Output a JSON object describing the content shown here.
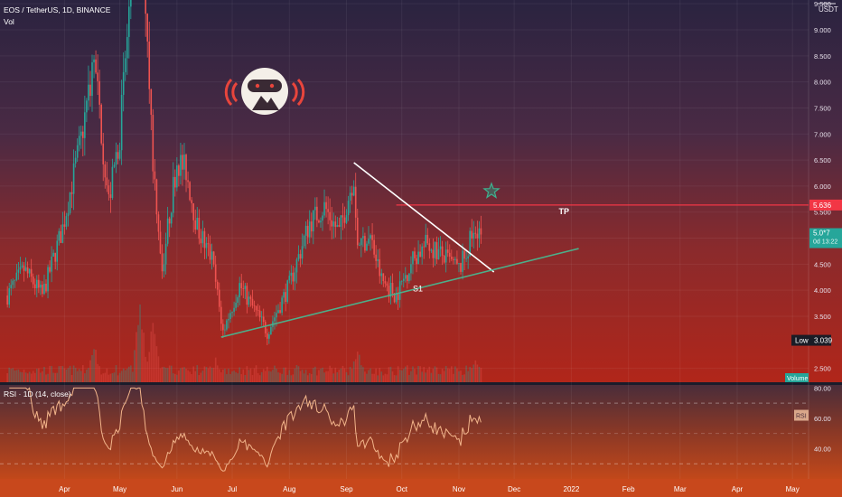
{
  "header": {
    "symbol_line": "EOS / TetherUS, 1D, BINANCE",
    "vol_label": "Vol"
  },
  "price_axis": {
    "unit": "USDT",
    "ticks": [
      {
        "label": "9.500",
        "value": 9.5
      },
      {
        "label": "9.000",
        "value": 9.0
      },
      {
        "label": "8.500",
        "value": 8.5
      },
      {
        "label": "8.000",
        "value": 8.0
      },
      {
        "label": "7.500",
        "value": 7.5
      },
      {
        "label": "7.000",
        "value": 7.0
      },
      {
        "label": "6.500",
        "value": 6.5
      },
      {
        "label": "6.000",
        "value": 6.0
      },
      {
        "label": "5.500",
        "value": 5.5
      },
      {
        "label": "5.000",
        "value": 5.0
      },
      {
        "label": "4.500",
        "value": 4.5
      },
      {
        "label": "4.000",
        "value": 4.0
      },
      {
        "label": "3.500",
        "value": 3.5
      },
      {
        "label": "2.500",
        "value": 2.5
      }
    ],
    "tp_tag": "5.636",
    "last_tag_top": "5.0*7",
    "last_tag_bottom": "0d 13:22",
    "low_label": "Low",
    "low_value": "3.039",
    "volume_tag": "Volume"
  },
  "rsi": {
    "label": "RSI · 1D (14, close)",
    "ticks": [
      {
        "label": "80.00",
        "value": 80
      },
      {
        "label": "60.00",
        "value": 60
      },
      {
        "label": "40.00",
        "value": 40
      }
    ],
    "tag": "RSI"
  },
  "time_axis": {
    "labels": [
      "Apr",
      "May",
      "Jun",
      "Jul",
      "Aug",
      "Sep",
      "Oct",
      "Nov",
      "Dec",
      "2022",
      "Feb",
      "Mar",
      "Apr",
      "May"
    ]
  },
  "annotations": {
    "tp_label": "TP",
    "support_label": "S1"
  },
  "colors": {
    "up": "#26a69a",
    "down": "#ef5350",
    "tp_line": "#f23645",
    "trend_down": "#ffffff",
    "trend_up": "#4caf8a",
    "rsi_line": "#f2b48a",
    "star": "#2e8b72"
  },
  "chart_data": {
    "type": "candlestick",
    "title": "EOS / TetherUS, 1D, BINANCE",
    "ylim": [
      2.3,
      9.6
    ],
    "y_scale": "linear",
    "price_path": [
      {
        "date": "2021-03-01",
        "price": 3.9
      },
      {
        "date": "2021-03-10",
        "price": 4.4
      },
      {
        "date": "2021-03-20",
        "price": 3.9
      },
      {
        "date": "2021-03-31",
        "price": 5.2
      },
      {
        "date": "2021-04-10",
        "price": 6.9
      },
      {
        "date": "2021-04-17",
        "price": 8.4
      },
      {
        "date": "2021-04-25",
        "price": 5.7
      },
      {
        "date": "2021-05-01",
        "price": 7.0
      },
      {
        "date": "2021-05-07",
        "price": 9.8
      },
      {
        "date": "2021-05-12",
        "price": 12.0
      },
      {
        "date": "2021-05-19",
        "price": 6.5
      },
      {
        "date": "2021-05-24",
        "price": 4.4
      },
      {
        "date": "2021-06-01",
        "price": 6.5
      },
      {
        "date": "2021-06-06",
        "price": 6.3
      },
      {
        "date": "2021-06-12",
        "price": 5.2
      },
      {
        "date": "2021-06-20",
        "price": 4.6
      },
      {
        "date": "2021-06-26",
        "price": 3.2
      },
      {
        "date": "2021-07-05",
        "price": 4.1
      },
      {
        "date": "2021-07-20",
        "price": 3.2
      },
      {
        "date": "2021-08-01",
        "price": 4.1
      },
      {
        "date": "2021-08-12",
        "price": 5.3
      },
      {
        "date": "2021-08-20",
        "price": 5.6
      },
      {
        "date": "2021-08-28",
        "price": 5.1
      },
      {
        "date": "2021-09-05",
        "price": 6.2
      },
      {
        "date": "2021-09-07",
        "price": 4.9
      },
      {
        "date": "2021-09-14",
        "price": 5.0
      },
      {
        "date": "2021-09-20",
        "price": 4.2
      },
      {
        "date": "2021-09-28",
        "price": 3.9
      },
      {
        "date": "2021-10-07",
        "price": 4.6
      },
      {
        "date": "2021-10-15",
        "price": 4.9
      },
      {
        "date": "2021-10-25",
        "price": 4.6
      },
      {
        "date": "2021-11-01",
        "price": 4.4
      },
      {
        "date": "2021-11-06",
        "price": 4.8
      },
      {
        "date": "2021-11-10",
        "price": 5.3
      },
      {
        "date": "2021-11-13",
        "price": 5.07
      }
    ],
    "volume_peaks": [
      {
        "date": "2021-04-17",
        "relative": 0.5
      },
      {
        "date": "2021-05-12",
        "relative": 1.0
      },
      {
        "date": "2021-05-19",
        "relative": 0.8
      },
      {
        "date": "2021-06-22",
        "relative": 0.3
      },
      {
        "date": "2021-09-07",
        "relative": 0.45
      },
      {
        "date": "2021-11-10",
        "relative": 0.3
      }
    ],
    "lines": [
      {
        "name": "TP",
        "type": "horizontal",
        "value": 5.636
      },
      {
        "type": "trend",
        "from": {
          "date": "2021-09-05",
          "price": 6.45
        },
        "to": {
          "date": "2021-11-20",
          "price": 4.35
        }
      },
      {
        "name": "S1",
        "type": "trend",
        "from": {
          "date": "2021-06-25",
          "price": 3.1
        },
        "to": {
          "date": "2022-01-05",
          "price": 4.8
        }
      }
    ],
    "last_price": 5.07,
    "low": 3.039,
    "rsi_ylim": [
      20,
      82
    ],
    "rsi_levels": [
      70,
      50,
      30
    ]
  }
}
